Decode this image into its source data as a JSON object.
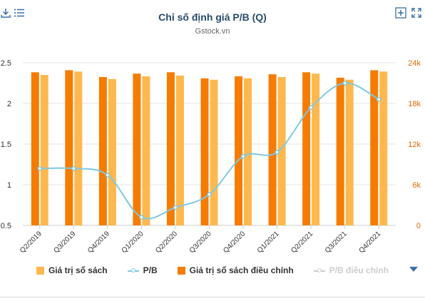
{
  "header": {
    "title": "Chỉ số định giá P/B (Q)",
    "subtitle": "Gstock.vn"
  },
  "legend": {
    "items": [
      {
        "label": "Giá trị sổ sách",
        "color": "#ffb84d",
        "kind": "bar",
        "enabled": true
      },
      {
        "label": "P/B",
        "color": "#7ec8e3",
        "kind": "line",
        "enabled": true
      },
      {
        "label": "Giá trị sổ sách điều chỉnh",
        "color": "#f57c00",
        "kind": "bar",
        "enabled": true
      },
      {
        "label": "P/B điều chỉnh",
        "color": "#cccccc",
        "kind": "line",
        "enabled": false
      }
    ]
  },
  "colors": {
    "book_value": "#ffb84d",
    "book_value_adjusted": "#f57c00",
    "pb_line": "#7ec8e3",
    "left_axis_text": "#333333",
    "right_axis_text": "#e06a00",
    "grid": "#e6e6e6",
    "title": "#274b6d"
  },
  "chart_data": {
    "type": "bar",
    "categories": [
      "Q2/2019",
      "Q3/2019",
      "Q4/2019",
      "Q1/2020",
      "Q2/2020",
      "Q3/2020",
      "Q4/2020",
      "Q1/2021",
      "Q2/2021",
      "Q3/2021",
      "Q4/2021"
    ],
    "series": [
      {
        "name": "Giá trị sổ sách điều chỉnh",
        "type": "bar",
        "axis": "right",
        "values": [
          22600,
          22900,
          21900,
          22400,
          22600,
          21700,
          22000,
          22300,
          22600,
          21800,
          22900
        ]
      },
      {
        "name": "Giá trị sổ sách",
        "type": "bar",
        "axis": "right",
        "values": [
          22200,
          22700,
          21600,
          22000,
          22100,
          21500,
          21700,
          21900,
          22400,
          21500,
          22700
        ]
      },
      {
        "name": "P/B",
        "type": "line",
        "axis": "left",
        "values": [
          1.2,
          1.2,
          1.12,
          0.6,
          0.72,
          0.88,
          1.35,
          1.4,
          1.95,
          2.25,
          2.05
        ]
      }
    ],
    "left_axis": {
      "ticks": [
        "0.5",
        "1",
        "1.5",
        "2",
        "2.5"
      ],
      "range": [
        0.5,
        2.5
      ]
    },
    "right_axis": {
      "ticks": [
        "0",
        "6k",
        "12k",
        "18k",
        "24k"
      ],
      "range": [
        0,
        24000
      ]
    },
    "grid": true,
    "legend_position": "bottom"
  }
}
